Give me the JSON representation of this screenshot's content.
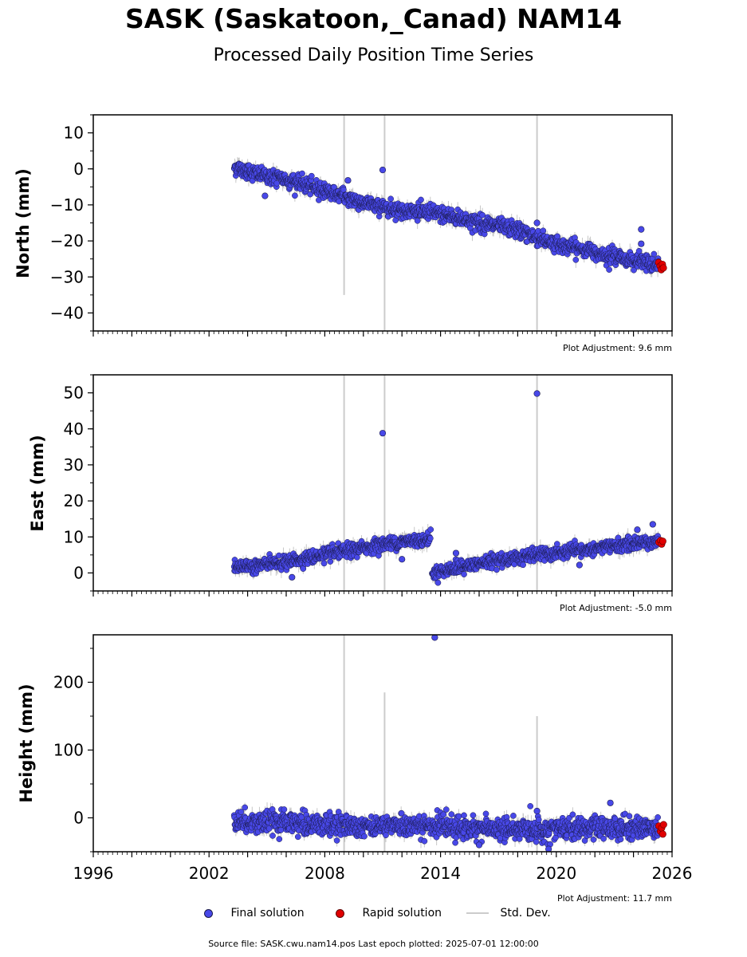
{
  "title": "SASK (Saskatoon,_Canad) NAM14",
  "subtitle": "Processed Daily Position Time Series",
  "source_line": "Source file: SASK.cwu.nam14.pos  Last epoch plotted: 2025-07-01 12:00:00",
  "legend": {
    "final": "Final solution",
    "rapid": "Rapid solution",
    "stddev": "Std. Dev."
  },
  "colors": {
    "final": "#4848e8",
    "rapid": "#e00000",
    "stddev": "#cccccc",
    "marker_edge": "#1a1a4a"
  },
  "chart_data": [
    {
      "type": "scatter",
      "name": "north",
      "ylabel": "North (mm)",
      "adjustment": "Plot Adjustment: 9.6 mm",
      "xlim": [
        1996,
        2026
      ],
      "ylim": [
        -45,
        15
      ],
      "yticks": [
        10,
        0,
        -10,
        -20,
        -30,
        -40
      ],
      "ytick_labels": [
        "10",
        "0",
        "−10",
        "−20",
        "−30",
        "−40"
      ],
      "trend": [
        [
          2003.3,
          0.5
        ],
        [
          2004.5,
          -1.5
        ],
        [
          2006.0,
          -3.0
        ],
        [
          2008.0,
          -6.0
        ],
        [
          2010.0,
          -9.5
        ],
        [
          2012.0,
          -11.5
        ],
        [
          2014.0,
          -12.5
        ],
        [
          2016.0,
          -15.0
        ],
        [
          2018.0,
          -17.0
        ],
        [
          2020.0,
          -21.0
        ],
        [
          2022.0,
          -23.0
        ],
        [
          2024.0,
          -25.5
        ],
        [
          2025.5,
          -27.0
        ]
      ],
      "noise": 1.2,
      "outliers": [
        [
          2009.2,
          -3.2
        ],
        [
          2011.0,
          -0.3
        ],
        [
          2019.0,
          -15.0
        ],
        [
          2024.4,
          -16.8
        ],
        [
          2024.4,
          -20.8
        ],
        [
          2004.9,
          -7.5
        ]
      ],
      "rapid": [
        [
          2025.3,
          -26.0
        ],
        [
          2025.38,
          -27.0
        ],
        [
          2025.44,
          -28.0
        ],
        [
          2025.5,
          -26.5
        ],
        [
          2025.55,
          -27.5
        ]
      ],
      "stddev_lines": [
        [
          2009.0,
          -35.0,
          15.0
        ],
        [
          2011.1,
          -45.0,
          15.0
        ],
        [
          2019.0,
          -45.0,
          15.0
        ]
      ]
    },
    {
      "type": "scatter",
      "name": "east",
      "ylabel": "East (mm)",
      "adjustment": "Plot Adjustment: -5.0 mm",
      "xlim": [
        1996,
        2026
      ],
      "ylim": [
        -5,
        55
      ],
      "yticks": [
        50,
        40,
        30,
        20,
        10,
        0
      ],
      "ytick_labels": [
        "50",
        "40",
        "30",
        "20",
        "10",
        "0"
      ],
      "trend": [
        [
          2003.3,
          1.5
        ],
        [
          2006.0,
          3.0
        ],
        [
          2009.0,
          6.0
        ],
        [
          2011.0,
          8.0
        ],
        [
          2013.5,
          9.5
        ],
        [
          2013.55,
          0.0
        ],
        [
          2015.0,
          1.5
        ],
        [
          2017.0,
          3.5
        ],
        [
          2019.0,
          5.0
        ],
        [
          2021.0,
          6.0
        ],
        [
          2023.0,
          7.5
        ],
        [
          2025.5,
          9.0
        ]
      ],
      "noise": 1.0,
      "outliers": [
        [
          2011.0,
          38.8
        ],
        [
          2019.0,
          49.8
        ],
        [
          2006.3,
          -1.2
        ],
        [
          2012.0,
          3.8
        ],
        [
          2014.8,
          5.5
        ],
        [
          2024.2,
          12.0
        ],
        [
          2025.0,
          13.5
        ],
        [
          2021.2,
          2.2
        ]
      ],
      "rapid": [
        [
          2025.32,
          8.5
        ],
        [
          2025.4,
          9.0
        ],
        [
          2025.46,
          8.0
        ],
        [
          2025.52,
          8.8
        ]
      ],
      "stddev_lines": [
        [
          2009.0,
          -5.0,
          55.0
        ],
        [
          2011.1,
          -5.0,
          55.0
        ],
        [
          2019.0,
          -5.0,
          55.0
        ]
      ]
    },
    {
      "type": "scatter",
      "name": "height",
      "ylabel": "Height (mm)",
      "adjustment": "Plot Adjustment: 11.7 mm",
      "xlim": [
        1996,
        2026
      ],
      "ylim": [
        -50,
        270
      ],
      "yticks": [
        200,
        100,
        0
      ],
      "ytick_labels": [
        "200",
        "100",
        "0"
      ],
      "xticks": [
        1996,
        2002,
        2008,
        2014,
        2020,
        2026
      ],
      "trend": [
        [
          2003.3,
          -5.0
        ],
        [
          2008.0,
          -10.0
        ],
        [
          2013.0,
          -12.0
        ],
        [
          2018.0,
          -18.0
        ],
        [
          2022.0,
          -15.0
        ],
        [
          2025.5,
          -15.0
        ]
      ],
      "noise": 9.0,
      "outliers": [
        [
          2013.7,
          266.0
        ],
        [
          2019.0,
          10.0
        ],
        [
          2022.8,
          22.0
        ],
        [
          2019.6,
          -46.0
        ],
        [
          2016.0,
          -40.0
        ]
      ],
      "rapid": [
        [
          2025.32,
          -12.0
        ],
        [
          2025.4,
          -20.0
        ],
        [
          2025.46,
          -15.0
        ],
        [
          2025.52,
          -24.0
        ],
        [
          2025.56,
          -10.0
        ]
      ],
      "stddev_lines": [
        [
          2009.0,
          -50.0,
          270.0
        ],
        [
          2011.1,
          -50.0,
          185.0
        ],
        [
          2019.0,
          -50.0,
          150.0
        ]
      ]
    }
  ]
}
